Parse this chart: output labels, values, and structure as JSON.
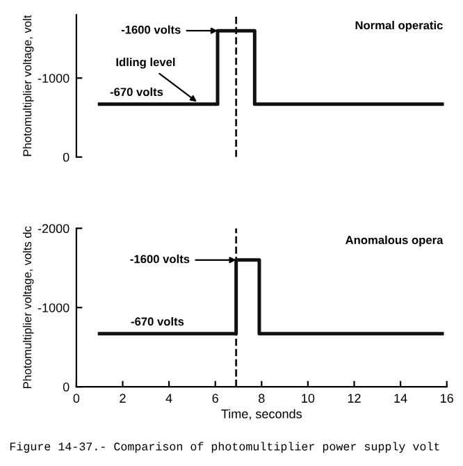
{
  "chart_data": [
    {
      "type": "line",
      "title": "Normal operatic",
      "ylabel": "Photomultiplier voltage, volt",
      "series": [
        {
          "color": "#111111",
          "x": [
            1.0,
            6.1,
            6.1,
            7.7,
            7.7,
            15.8
          ],
          "values": [
            -670,
            -670,
            -1600,
            -1600,
            -670,
            -670
          ]
        }
      ],
      "xlim": [
        0,
        16
      ],
      "ylim": [
        0,
        -1800
      ],
      "yticks": [
        0,
        -1000
      ],
      "tick_labels": "y",
      "ref_lines": [
        {
          "axis": "x",
          "value": 6.9,
          "line_style": "dashed",
          "color": "#111111"
        }
      ],
      "annotations": [
        {
          "text": "-1600 volts",
          "x": 6.1,
          "y": -1600
        },
        {
          "text": "Idling level",
          "x": 5.2,
          "y": -700
        },
        {
          "text": "-670 volts",
          "x": 2.6,
          "y": -670
        }
      ],
      "grid": false,
      "legend": false,
      "marker": "none",
      "line_style": "solid"
    },
    {
      "type": "line",
      "title": "Anomalous opera",
      "ylabel": "Photomultiplier voltage, volts dc",
      "xlabel": "Time, seconds",
      "series": [
        {
          "color": "#111111",
          "x": [
            1.0,
            6.9,
            6.9,
            7.9,
            7.9,
            15.8
          ],
          "values": [
            -670,
            -670,
            -1600,
            -1600,
            -670,
            -670
          ]
        }
      ],
      "xlim": [
        0,
        16
      ],
      "ylim": [
        0,
        -2000
      ],
      "xticks": [
        0,
        2,
        4,
        6,
        8,
        10,
        12,
        14,
        16
      ],
      "yticks": [
        0,
        -1000,
        -2000
      ],
      "ref_lines": [
        {
          "axis": "x",
          "value": 6.9,
          "line_style": "dashed",
          "color": "#111111"
        }
      ],
      "annotations": [
        {
          "text": "-1600 volts",
          "x": 6.9,
          "y": -1600
        },
        {
          "text": "-670 volts",
          "x": 3.5,
          "y": -670
        },
        "Figure 14-37.- Comparison of photomultiplier power supply volt"
      ],
      "grid": false,
      "legend": false,
      "marker": "none",
      "line_style": "solid"
    }
  ]
}
